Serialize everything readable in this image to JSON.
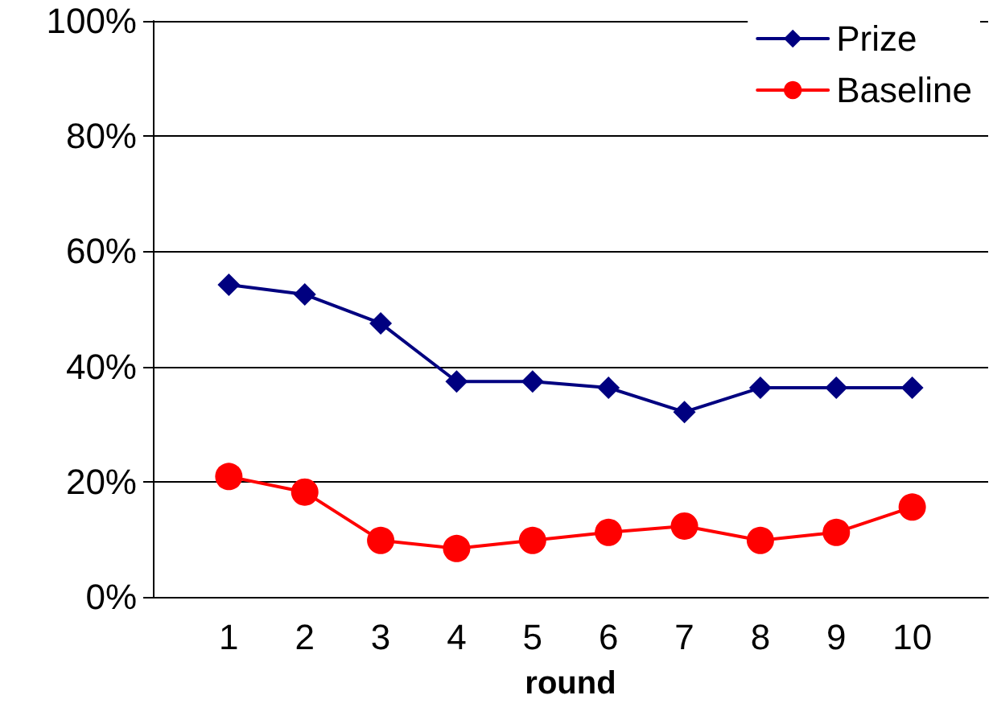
{
  "chart_data": {
    "type": "line",
    "xlabel": "round",
    "categories": [
      null,
      "1",
      "2",
      "3",
      "4",
      "5",
      "6",
      "7",
      "8",
      "9",
      "10",
      null
    ],
    "ylim": [
      0,
      100
    ],
    "yticks": [
      {
        "value": 0,
        "label": "0%"
      },
      {
        "value": 20,
        "label": "20%"
      },
      {
        "value": 40,
        "label": "40%"
      },
      {
        "value": 60,
        "label": "60%"
      },
      {
        "value": 80,
        "label": "80%"
      },
      {
        "value": 100,
        "label": "100%"
      }
    ],
    "series": [
      {
        "name": "Prize",
        "color": "#000080",
        "marker": "diamond",
        "values": [
          null,
          54.2,
          52.5,
          47.5,
          37.4,
          37.4,
          36.3,
          32.1,
          36.3,
          36.3,
          36.3,
          null
        ]
      },
      {
        "name": "Baseline",
        "color": "#ff0000",
        "marker": "circle",
        "values": [
          null,
          20.9,
          18.2,
          9.8,
          8.4,
          9.8,
          11.2,
          12.3,
          9.8,
          11.2,
          15.6,
          null
        ]
      }
    ],
    "grid": "y",
    "legend": "top right",
    "line_style": "solid"
  }
}
